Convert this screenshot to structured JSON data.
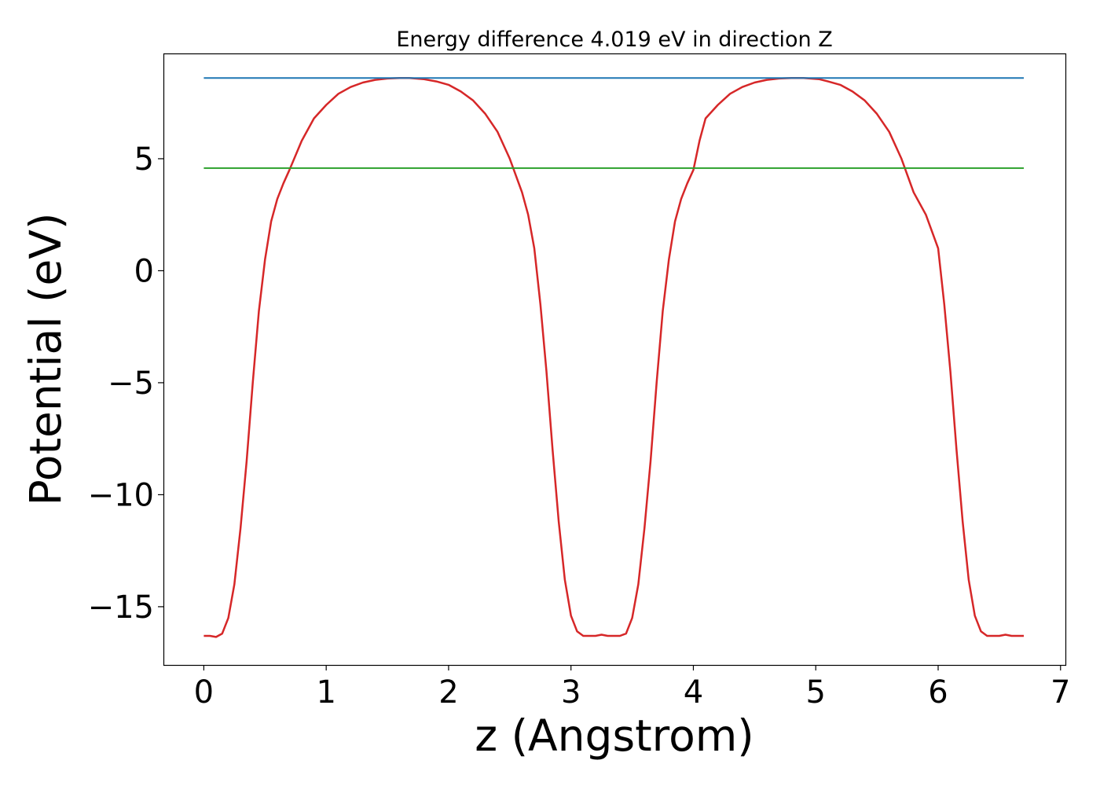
{
  "chart_data": {
    "type": "line",
    "title": "Energy difference 4.019 eV in direction Z",
    "xlabel": "z (Angstrom)",
    "ylabel": "Potential (eV)",
    "xlim": [
      -0.33,
      7.04
    ],
    "ylim": [
      -17.6,
      9.7
    ],
    "x_ticks": [
      0,
      1,
      2,
      3,
      4,
      5,
      6,
      7
    ],
    "y_ticks": [
      -15,
      -10,
      -5,
      0,
      5
    ],
    "x_tick_labels": [
      "0",
      "1",
      "2",
      "3",
      "4",
      "5",
      "6",
      "7"
    ],
    "y_tick_labels": [
      "−15",
      "−10",
      "−5",
      "0",
      "5"
    ],
    "grid": false,
    "series": [
      {
        "color": "#d62728",
        "x": [
          0,
          0.05,
          0.1,
          0.15,
          0.2,
          0.25,
          0.3,
          0.35,
          0.4,
          0.45,
          0.5,
          0.55,
          0.6,
          0.65,
          0.7,
          0.8,
          0.9,
          1.0,
          1.1,
          1.2,
          1.3,
          1.4,
          1.5,
          1.6,
          1.68,
          1.8,
          1.9,
          2.0,
          2.1,
          2.2,
          2.3,
          2.4,
          2.5,
          2.6,
          2.65,
          2.7,
          2.75,
          2.8,
          2.85,
          2.9,
          2.95,
          3.0,
          3.05,
          3.1,
          3.15,
          3.2,
          3.25,
          3.3,
          3.35,
          3.4,
          3.45,
          3.5,
          3.55,
          3.6,
          3.65,
          3.7,
          3.75,
          3.8,
          3.85,
          3.9,
          3.95,
          4.0,
          4.05,
          4.1,
          4.2,
          4.3,
          4.4,
          4.5,
          4.6,
          4.7,
          4.8,
          4.9,
          5.03,
          5.1,
          5.2,
          5.3,
          5.4,
          5.5,
          5.6,
          5.7,
          5.8,
          5.9,
          6.0,
          6.05,
          6.1,
          6.15,
          6.2,
          6.25,
          6.3,
          6.35,
          6.4,
          6.45,
          6.5,
          6.55,
          6.6,
          6.65,
          6.7
        ],
        "y": [
          -16.3,
          -16.3,
          -16.35,
          -16.2,
          -15.5,
          -14.0,
          -11.5,
          -8.5,
          -5.0,
          -1.8,
          0.5,
          2.2,
          3.2,
          3.9,
          4.5,
          5.8,
          6.8,
          7.4,
          7.9,
          8.2,
          8.4,
          8.52,
          8.58,
          8.6,
          8.6,
          8.55,
          8.45,
          8.3,
          8.0,
          7.6,
          7.0,
          6.2,
          5.0,
          3.5,
          2.5,
          1.0,
          -1.5,
          -4.5,
          -8.0,
          -11.2,
          -13.8,
          -15.4,
          -16.1,
          -16.3,
          -16.3,
          -16.3,
          -16.25,
          -16.3,
          -16.3,
          -16.3,
          -16.2,
          -15.5,
          -14.0,
          -11.5,
          -8.5,
          -5.0,
          -1.8,
          0.5,
          2.2,
          3.2,
          3.9,
          4.5,
          5.8,
          6.8,
          7.4,
          7.9,
          8.2,
          8.4,
          8.52,
          8.58,
          8.6,
          8.6,
          8.55,
          8.45,
          8.3,
          8.0,
          7.6,
          7.0,
          6.2,
          5.0,
          3.5,
          2.5,
          1.0,
          -1.5,
          -4.5,
          -8.0,
          -11.2,
          -13.8,
          -15.4,
          -16.1,
          -16.3,
          -16.3,
          -16.3,
          -16.25,
          -16.3,
          -16.3,
          -16.3
        ]
      },
      {
        "color": "#1f77b4",
        "x": [
          0,
          6.7
        ],
        "y": [
          8.6,
          8.6
        ]
      },
      {
        "color": "#2ca02c",
        "x": [
          0,
          6.7
        ],
        "y": [
          4.58,
          4.58
        ]
      }
    ]
  }
}
